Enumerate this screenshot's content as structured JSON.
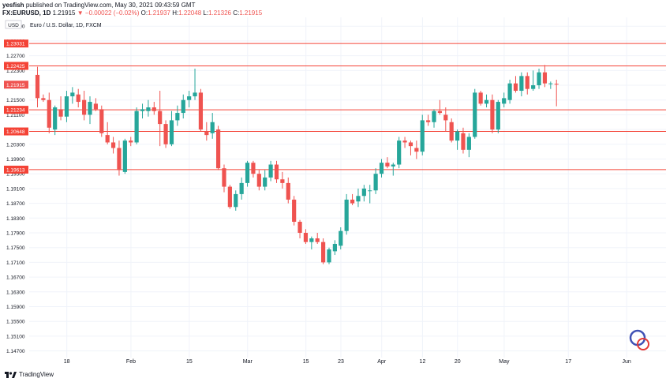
{
  "header": {
    "publisher": "yesfish",
    "published_text": "published on TradingView.com, May 30, 2021 09:43:59 GMT",
    "symbol": "FX:EURUSD, 1D",
    "last": "1.21915",
    "change_arrow": "▼",
    "change": "−0.00022 (−0.02%)",
    "open_label": "O:",
    "open": "1.21937",
    "high_label": "H:",
    "high": "1.22048",
    "low_label": "L:",
    "low": "1.21326",
    "close_label": "C:",
    "close": "1.21915"
  },
  "footer": {
    "brand": "TradingView"
  },
  "chart_data": {
    "type": "candlestick",
    "title": "Euro / U.S. Dollar, 1D, FXCM",
    "currency": "USD",
    "y_ticks": [
      "1.23500",
      "1.23100",
      "1.22700",
      "1.22300",
      "1.21900",
      "1.21500",
      "1.21100",
      "1.20700",
      "1.20300",
      "1.19900",
      "1.19500",
      "1.19100",
      "1.18700",
      "1.18300",
      "1.17900",
      "1.17500",
      "1.17100",
      "1.16700",
      "1.16300",
      "1.15900",
      "1.15500",
      "1.15100",
      "1.14700"
    ],
    "ylim": [
      1.1452,
      1.2374
    ],
    "x_labels": [
      {
        "label": "18",
        "i": 3
      },
      {
        "label": "Feb",
        "i": 14
      },
      {
        "label": "15",
        "i": 24
      },
      {
        "label": "Mar",
        "i": 34
      },
      {
        "label": "15",
        "i": 44
      },
      {
        "label": "23",
        "i": 50
      },
      {
        "label": "Apr",
        "i": 57
      },
      {
        "label": "12",
        "i": 64
      },
      {
        "label": "20",
        "i": 70
      },
      {
        "label": "May",
        "i": 78
      },
      {
        "label": "17",
        "i": 89
      },
      {
        "label": "Jun",
        "i": 99
      }
    ],
    "horizontal_levels": [
      "1.23031",
      "1.22425",
      "1.21234",
      "1.20648",
      "1.19613"
    ],
    "last_price_label": "1.21915",
    "colors": {
      "up": "#26a69a",
      "down": "#ef5350",
      "level": "#f44336",
      "grid": "#f0f3fa",
      "text": "#131722"
    },
    "candles": [
      {
        "o": 1.2218,
        "h": 1.224,
        "l": 1.213,
        "c": 1.2155
      },
      {
        "o": 1.2155,
        "h": 1.2165,
        "l": 1.2145,
        "c": 1.215
      },
      {
        "o": 1.215,
        "h": 1.217,
        "l": 1.206,
        "c": 1.2075
      },
      {
        "o": 1.207,
        "h": 1.2135,
        "l": 1.2055,
        "c": 1.213
      },
      {
        "o": 1.2125,
        "h": 1.216,
        "l": 1.2095,
        "c": 1.2105
      },
      {
        "o": 1.2105,
        "h": 1.2175,
        "l": 1.209,
        "c": 1.216
      },
      {
        "o": 1.216,
        "h": 1.2185,
        "l": 1.214,
        "c": 1.217
      },
      {
        "o": 1.2165,
        "h": 1.218,
        "l": 1.213,
        "c": 1.2145
      },
      {
        "o": 1.215,
        "h": 1.2175,
        "l": 1.2095,
        "c": 1.211
      },
      {
        "o": 1.211,
        "h": 1.216,
        "l": 1.2085,
        "c": 1.2145
      },
      {
        "o": 1.214,
        "h": 1.2155,
        "l": 1.212,
        "c": 1.2125
      },
      {
        "o": 1.2125,
        "h": 1.2135,
        "l": 1.205,
        "c": 1.206
      },
      {
        "o": 1.2055,
        "h": 1.209,
        "l": 1.203,
        "c": 1.2035
      },
      {
        "o": 1.2035,
        "h": 1.205,
        "l": 1.2005,
        "c": 1.202
      },
      {
        "o": 1.202,
        "h": 1.204,
        "l": 1.1945,
        "c": 1.196
      },
      {
        "o": 1.1955,
        "h": 1.2045,
        "l": 1.195,
        "c": 1.204
      },
      {
        "o": 1.204,
        "h": 1.205,
        "l": 1.2025,
        "c": 1.2035
      },
      {
        "o": 1.2035,
        "h": 1.213,
        "l": 1.203,
        "c": 1.212
      },
      {
        "o": 1.212,
        "h": 1.214,
        "l": 1.21,
        "c": 1.2125
      },
      {
        "o": 1.212,
        "h": 1.215,
        "l": 1.2105,
        "c": 1.213
      },
      {
        "o": 1.213,
        "h": 1.2145,
        "l": 1.211,
        "c": 1.212
      },
      {
        "o": 1.212,
        "h": 1.2175,
        "l": 1.2025,
        "c": 1.2085
      },
      {
        "o": 1.2085,
        "h": 1.2095,
        "l": 1.202,
        "c": 1.203
      },
      {
        "o": 1.203,
        "h": 1.212,
        "l": 1.2025,
        "c": 1.2095
      },
      {
        "o": 1.2095,
        "h": 1.2135,
        "l": 1.208,
        "c": 1.2115
      },
      {
        "o": 1.2115,
        "h": 1.2165,
        "l": 1.21,
        "c": 1.215
      },
      {
        "o": 1.215,
        "h": 1.2175,
        "l": 1.213,
        "c": 1.216
      },
      {
        "o": 1.216,
        "h": 1.2235,
        "l": 1.215,
        "c": 1.217
      },
      {
        "o": 1.217,
        "h": 1.218,
        "l": 1.2065,
        "c": 1.207
      },
      {
        "o": 1.2065,
        "h": 1.209,
        "l": 1.204,
        "c": 1.2055
      },
      {
        "o": 1.206,
        "h": 1.2115,
        "l": 1.2045,
        "c": 1.209
      },
      {
        "o": 1.207,
        "h": 1.208,
        "l": 1.196,
        "c": 1.1965
      },
      {
        "o": 1.1965,
        "h": 1.1975,
        "l": 1.19,
        "c": 1.1915
      },
      {
        "o": 1.1915,
        "h": 1.192,
        "l": 1.1855,
        "c": 1.186
      },
      {
        "o": 1.186,
        "h": 1.1905,
        "l": 1.185,
        "c": 1.1895
      },
      {
        "o": 1.1895,
        "h": 1.194,
        "l": 1.188,
        "c": 1.1925
      },
      {
        "o": 1.1925,
        "h": 1.1985,
        "l": 1.1915,
        "c": 1.198
      },
      {
        "o": 1.198,
        "h": 1.1985,
        "l": 1.194,
        "c": 1.195
      },
      {
        "o": 1.195,
        "h": 1.196,
        "l": 1.1905,
        "c": 1.1915
      },
      {
        "o": 1.1915,
        "h": 1.196,
        "l": 1.1905,
        "c": 1.194
      },
      {
        "o": 1.194,
        "h": 1.1985,
        "l": 1.193,
        "c": 1.1975
      },
      {
        "o": 1.1975,
        "h": 1.1985,
        "l": 1.1925,
        "c": 1.1935
      },
      {
        "o": 1.1935,
        "h": 1.1955,
        "l": 1.191,
        "c": 1.1925
      },
      {
        "o": 1.1925,
        "h": 1.194,
        "l": 1.187,
        "c": 1.188
      },
      {
        "o": 1.188,
        "h": 1.189,
        "l": 1.181,
        "c": 1.182
      },
      {
        "o": 1.182,
        "h": 1.1825,
        "l": 1.1775,
        "c": 1.179
      },
      {
        "o": 1.179,
        "h": 1.18,
        "l": 1.176,
        "c": 1.1765
      },
      {
        "o": 1.1765,
        "h": 1.178,
        "l": 1.1745,
        "c": 1.1775
      },
      {
        "o": 1.1775,
        "h": 1.179,
        "l": 1.176,
        "c": 1.1765
      },
      {
        "o": 1.1765,
        "h": 1.1775,
        "l": 1.1705,
        "c": 1.171
      },
      {
        "o": 1.171,
        "h": 1.175,
        "l": 1.1705,
        "c": 1.1745
      },
      {
        "o": 1.174,
        "h": 1.177,
        "l": 1.173,
        "c": 1.176
      },
      {
        "o": 1.1755,
        "h": 1.1805,
        "l": 1.1745,
        "c": 1.1795
      },
      {
        "o": 1.1795,
        "h": 1.1895,
        "l": 1.1785,
        "c": 1.188
      },
      {
        "o": 1.188,
        "h": 1.1895,
        "l": 1.1865,
        "c": 1.187
      },
      {
        "o": 1.1875,
        "h": 1.191,
        "l": 1.186,
        "c": 1.189
      },
      {
        "o": 1.189,
        "h": 1.192,
        "l": 1.1875,
        "c": 1.191
      },
      {
        "o": 1.1905,
        "h": 1.192,
        "l": 1.187,
        "c": 1.1905
      },
      {
        "o": 1.1905,
        "h": 1.1965,
        "l": 1.1895,
        "c": 1.195
      },
      {
        "o": 1.195,
        "h": 1.199,
        "l": 1.194,
        "c": 1.198
      },
      {
        "o": 1.198,
        "h": 1.1995,
        "l": 1.1965,
        "c": 1.197
      },
      {
        "o": 1.197,
        "h": 1.198,
        "l": 1.1945,
        "c": 1.1975
      },
      {
        "o": 1.1975,
        "h": 1.205,
        "l": 1.1965,
        "c": 1.204
      },
      {
        "o": 1.204,
        "h": 1.205,
        "l": 1.202,
        "c": 1.2035
      },
      {
        "o": 1.2035,
        "h": 1.204,
        "l": 1.2,
        "c": 1.2025
      },
      {
        "o": 1.202,
        "h": 1.204,
        "l": 1.199,
        "c": 1.201
      },
      {
        "o": 1.201,
        "h": 1.211,
        "l": 1.2,
        "c": 1.2095
      },
      {
        "o": 1.2095,
        "h": 1.211,
        "l": 1.208,
        "c": 1.209
      },
      {
        "o": 1.209,
        "h": 1.2125,
        "l": 1.2075,
        "c": 1.212
      },
      {
        "o": 1.212,
        "h": 1.215,
        "l": 1.211,
        "c": 1.2115
      },
      {
        "o": 1.211,
        "h": 1.213,
        "l": 1.2065,
        "c": 1.2095
      },
      {
        "o": 1.209,
        "h": 1.21,
        "l": 1.2035,
        "c": 1.204
      },
      {
        "o": 1.204,
        "h": 1.207,
        "l": 1.2015,
        "c": 1.2065
      },
      {
        "o": 1.206,
        "h": 1.2075,
        "l": 1.2005,
        "c": 1.2015
      },
      {
        "o": 1.2015,
        "h": 1.206,
        "l": 1.1995,
        "c": 1.205
      },
      {
        "o": 1.205,
        "h": 1.218,
        "l": 1.2045,
        "c": 1.217
      },
      {
        "o": 1.217,
        "h": 1.2175,
        "l": 1.2135,
        "c": 1.214
      },
      {
        "o": 1.214,
        "h": 1.2165,
        "l": 1.213,
        "c": 1.215
      },
      {
        "o": 1.215,
        "h": 1.2165,
        "l": 1.206,
        "c": 1.207
      },
      {
        "o": 1.207,
        "h": 1.215,
        "l": 1.206,
        "c": 1.2145
      },
      {
        "o": 1.214,
        "h": 1.217,
        "l": 1.213,
        "c": 1.2155
      },
      {
        "o": 1.215,
        "h": 1.2205,
        "l": 1.214,
        "c": 1.2195
      },
      {
        "o": 1.2195,
        "h": 1.2215,
        "l": 1.217,
        "c": 1.2175
      },
      {
        "o": 1.2175,
        "h": 1.2225,
        "l": 1.216,
        "c": 1.2215
      },
      {
        "o": 1.2215,
        "h": 1.2225,
        "l": 1.2165,
        "c": 1.218
      },
      {
        "o": 1.218,
        "h": 1.223,
        "l": 1.2175,
        "c": 1.219
      },
      {
        "o": 1.219,
        "h": 1.2235,
        "l": 1.218,
        "c": 1.2225
      },
      {
        "o": 1.2225,
        "h": 1.2245,
        "l": 1.2185,
        "c": 1.2195
      },
      {
        "o": 1.2195,
        "h": 1.22,
        "l": 1.218,
        "c": 1.2195
      },
      {
        "o": 1.2194,
        "h": 1.2205,
        "l": 1.2133,
        "c": 1.2192
      }
    ]
  }
}
